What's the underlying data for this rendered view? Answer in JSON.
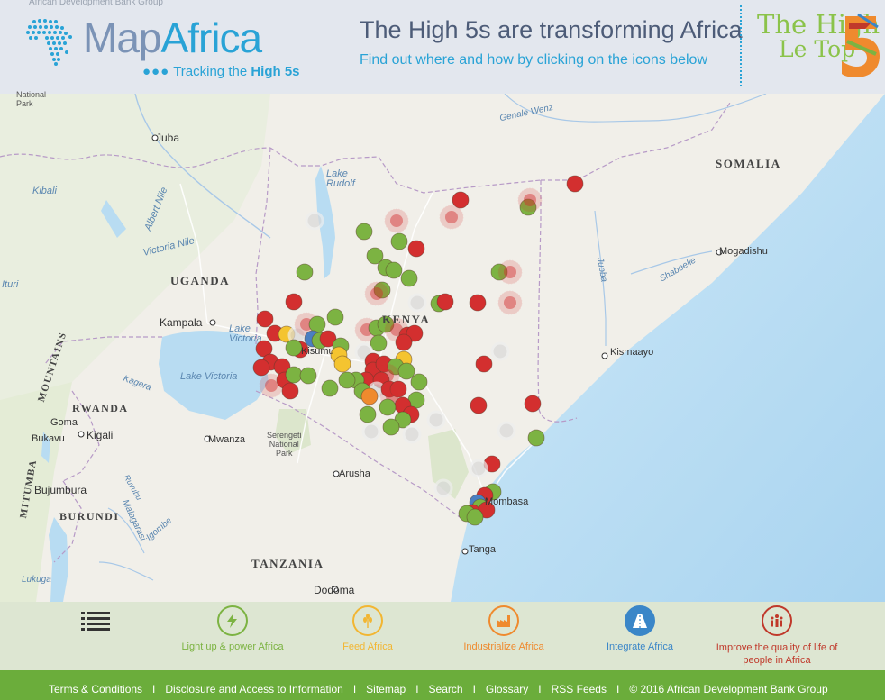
{
  "header": {
    "parent_org": "African Development Bank Group",
    "brand_map": "Map",
    "brand_africa": "Africa",
    "tagline_prefix": "Tracking the ",
    "tagline_highlight": "High 5s",
    "headline": "The High 5s are transforming Africa",
    "subline": "Find out where and how by clicking on the icons below",
    "high5_line1": "The High",
    "high5_line2": "Le Top"
  },
  "map": {
    "places": [
      {
        "id": "national-park",
        "text": "National\nPark"
      },
      {
        "id": "juba",
        "text": "Juba"
      },
      {
        "id": "kibali",
        "text": "Kibali"
      },
      {
        "id": "albert-nile",
        "text": "Albert Nile"
      },
      {
        "id": "victoria-nile",
        "text": "Victoria Nile"
      },
      {
        "id": "ituri",
        "text": "Ituri"
      },
      {
        "id": "uganda",
        "text": "UGANDA"
      },
      {
        "id": "kampala",
        "text": "Kampala"
      },
      {
        "id": "lake-victoria-a",
        "text": "Lake\nVictoria"
      },
      {
        "id": "lake-victoria-b",
        "text": "Lake Victoria"
      },
      {
        "id": "rwanda",
        "text": "RWANDA"
      },
      {
        "id": "goma",
        "text": "Goma"
      },
      {
        "id": "kigali",
        "text": "Kigali"
      },
      {
        "id": "bukavu",
        "text": "Bukavu"
      },
      {
        "id": "bujumbura",
        "text": "Bujumbura"
      },
      {
        "id": "burundi",
        "text": "BURUNDI"
      },
      {
        "id": "mountains",
        "text": "MOUNTAINS"
      },
      {
        "id": "mitumba",
        "text": "MITUMBA"
      },
      {
        "id": "mwanza",
        "text": "Mwanza"
      },
      {
        "id": "serengeti",
        "text": "Serengeti\nNational\nPark"
      },
      {
        "id": "arusha",
        "text": "Arusha"
      },
      {
        "id": "tanzania",
        "text": "TANZANIA"
      },
      {
        "id": "dodoma",
        "text": "Dodoma"
      },
      {
        "id": "tanga",
        "text": "Tanga"
      },
      {
        "id": "mombasa",
        "text": "Mombasa"
      },
      {
        "id": "kenya",
        "text": "KENYA"
      },
      {
        "id": "kisumu",
        "text": "Kisumu"
      },
      {
        "id": "lake-rudolf",
        "text": "Lake\nRudolf"
      },
      {
        "id": "somalia",
        "text": "SOMALIA"
      },
      {
        "id": "mogadishu",
        "text": "Mogadishu"
      },
      {
        "id": "kismaayo",
        "text": "Kismaayo"
      },
      {
        "id": "shabeelle",
        "text": "Shabeelle"
      },
      {
        "id": "juba-river",
        "text": "Jubba"
      },
      {
        "id": "genale",
        "text": "Genale Wenz"
      },
      {
        "id": "lukuga",
        "text": "Lukuga"
      },
      {
        "id": "igombe",
        "text": "Igombe"
      },
      {
        "id": "malagarasi",
        "text": "Malagarasi"
      },
      {
        "id": "kagera",
        "text": "Kagera"
      },
      {
        "id": "ruvubu",
        "text": "Ruvubu"
      }
    ],
    "colors": {
      "red": "#d32f2f",
      "green": "#7cb342",
      "orange": "#ef8a2e",
      "yellow": "#f4c430",
      "blue": "#4a7fc1",
      "grey": "#d9d9d9"
    }
  },
  "toolbar": {
    "items": [
      {
        "id": "light-up",
        "label": "Light up & power Africa",
        "color": "#7cb342",
        "icon": "lightning-icon"
      },
      {
        "id": "feed",
        "label": "Feed Africa",
        "color": "#f2b632",
        "icon": "wheat-icon"
      },
      {
        "id": "industrialize",
        "label": "Industrialize Africa",
        "color": "#ef8a2e",
        "icon": "factory-icon"
      },
      {
        "id": "integrate",
        "label": "Integrate Africa",
        "color": "#3a86c8",
        "icon": "road-icon"
      },
      {
        "id": "quality",
        "label": "Improve the quality of life of people in Africa",
        "color": "#c0392b",
        "icon": "people-icon"
      }
    ]
  },
  "footer": {
    "links": [
      "Terms & Conditions",
      "Disclosure and Access to Information",
      "Sitemap",
      "Search",
      "Glossary",
      "RSS Feeds"
    ],
    "copyright": "© 2016 African Development Bank Group",
    "separator": "I"
  }
}
